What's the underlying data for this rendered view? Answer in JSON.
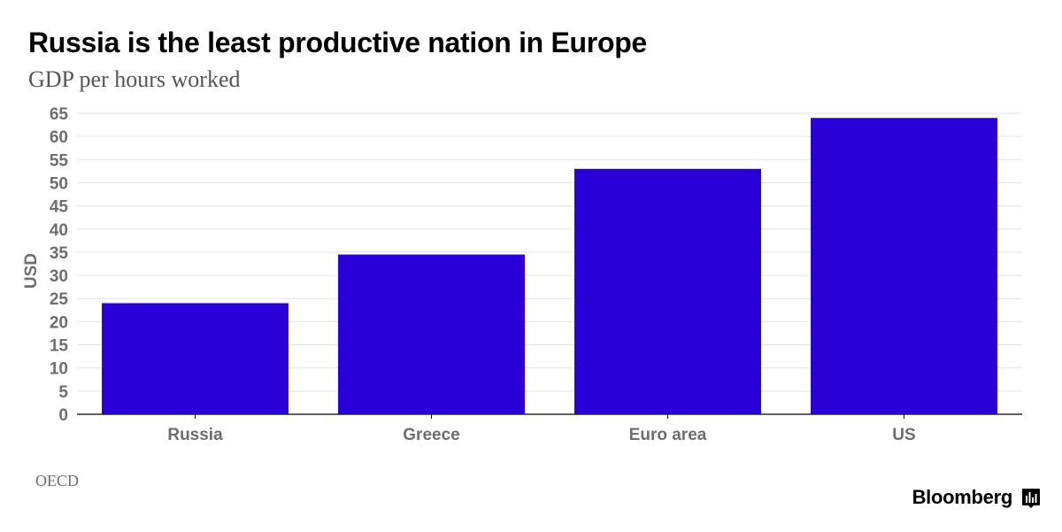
{
  "header": {
    "title": "Russia is the least productive nation in Europe",
    "subtitle": "GDP per hours worked"
  },
  "footer": {
    "source": "OECD",
    "brand": "Bloomberg"
  },
  "colors": {
    "bar": "#2a00d9",
    "grid": "#e3e3e3",
    "axis": "#000000",
    "tick_text": "#6e6e6e"
  },
  "icons": {
    "brand": "bloomberg-logo-icon"
  },
  "chart_data": {
    "type": "bar",
    "title": "Russia is the least productive nation in Europe",
    "subtitle": "GDP per hours worked",
    "xlabel": "",
    "ylabel": "USD",
    "categories": [
      "Russia",
      "Greece",
      "Euro area",
      "US"
    ],
    "values": [
      24,
      34.5,
      53,
      64
    ],
    "ylim": [
      0,
      65
    ],
    "yticks": [
      0,
      5,
      10,
      15,
      20,
      25,
      30,
      35,
      40,
      45,
      50,
      55,
      60,
      65
    ],
    "grid": true,
    "legend": "none",
    "source": "OECD"
  }
}
